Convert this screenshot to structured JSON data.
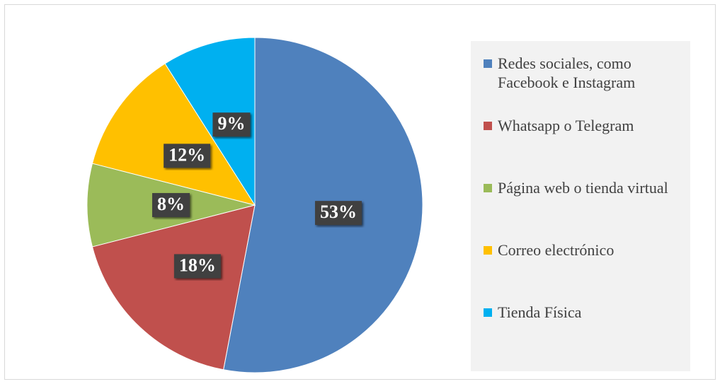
{
  "chart_data": {
    "type": "pie",
    "categories": [
      "Redes sociales, como Facebook e Instagram",
      "Whatsapp o Telegram",
      "Página web o tienda virtual",
      "Correo electrónico",
      "Tienda Física"
    ],
    "values": [
      53,
      18,
      8,
      12,
      9
    ],
    "value_labels": [
      "53%",
      "18%",
      "8%",
      "12%",
      "9%"
    ],
    "colors": [
      "#4f81bd",
      "#c0504d",
      "#9bbb59",
      "#ffc000",
      "#00b0f0"
    ]
  }
}
